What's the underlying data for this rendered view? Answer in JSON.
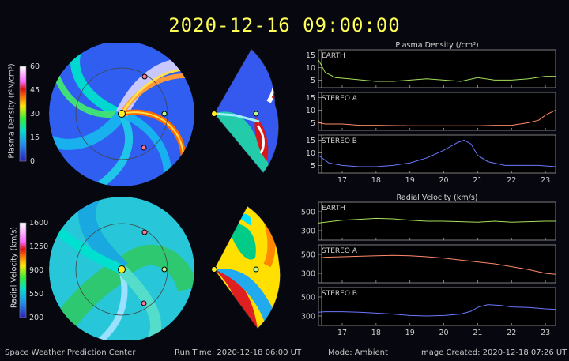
{
  "timestamp": "2020-12-16  09:00:00",
  "footer": {
    "center": "Space Weather Prediction Center",
    "run_time": "Run Time: 2020-12-18 06:00 UT",
    "mode": "Mode: Ambient",
    "created": "Image Created: 2020-12-18 07:26 UT"
  },
  "colorbars": [
    {
      "label": "Plasma Density (r²N/cm³)",
      "ticks": [
        "60",
        "45",
        "30",
        "15",
        "0"
      ]
    },
    {
      "label": "Radial Velocity (km/s)",
      "ticks": [
        "1600",
        "1250",
        "900",
        "550",
        "200"
      ]
    }
  ],
  "colors": {
    "earth": "#a4e05a",
    "stereo_a": "#ff8a6a",
    "stereo_b": "#6b78ff",
    "now_line": "#ffff00",
    "accent": "#ffff55"
  },
  "chart_data": [
    {
      "type": "line",
      "title": "Plasma Density (/cm³)",
      "xlim": [
        16.3,
        23.3
      ],
      "xticks": [
        17,
        18,
        19,
        20,
        21,
        22,
        23
      ],
      "now_marker": 16.4,
      "panels": [
        {
          "name": "EARTH",
          "ylim": [
            2,
            17
          ],
          "yticks": [
            5,
            10,
            15
          ],
          "x": [
            16.3,
            16.5,
            16.8,
            17.2,
            17.6,
            18.0,
            18.5,
            19.0,
            19.5,
            20.0,
            20.5,
            21.0,
            21.5,
            22.0,
            22.5,
            23.0,
            23.3
          ],
          "y": [
            13,
            8,
            6,
            5.5,
            5,
            4.5,
            4.5,
            5,
            5.5,
            5,
            4.5,
            6,
            5,
            5,
            5.5,
            6.5,
            6.5
          ]
        },
        {
          "name": "STEREO A",
          "ylim": [
            2,
            17
          ],
          "yticks": [
            5,
            10,
            15
          ],
          "x": [
            16.3,
            16.5,
            17.0,
            17.5,
            18.0,
            19.0,
            20.0,
            21.0,
            21.5,
            22.0,
            22.5,
            22.8,
            23.0,
            23.3
          ],
          "y": [
            5,
            4.5,
            4.5,
            4,
            4,
            3.8,
            3.8,
            3.8,
            4,
            4,
            5,
            6,
            8,
            10
          ]
        },
        {
          "name": "STEREO B",
          "ylim": [
            2,
            17
          ],
          "yticks": [
            5,
            10,
            15
          ],
          "x": [
            16.3,
            16.6,
            17.0,
            17.5,
            18.0,
            18.5,
            19.0,
            19.5,
            20.0,
            20.4,
            20.6,
            20.8,
            21.0,
            21.3,
            21.8,
            22.3,
            22.8,
            23.3
          ],
          "y": [
            9,
            6,
            5,
            4.5,
            4.5,
            5,
            6,
            8,
            11,
            14,
            15,
            13.5,
            9,
            6.5,
            5,
            5,
            5,
            4.5
          ]
        }
      ]
    },
    {
      "type": "line",
      "title": "Radial Velocity (km/s)",
      "xlim": [
        16.3,
        23.3
      ],
      "xticks": [
        17,
        18,
        19,
        20,
        21,
        22,
        23
      ],
      "xlabels": [
        "17",
        "18",
        "19",
        "20",
        "21",
        "22",
        "23"
      ],
      "now_marker": 16.4,
      "panels": [
        {
          "name": "EARTH",
          "ylim": [
            200,
            600
          ],
          "yticks": [
            300,
            500
          ],
          "x": [
            16.3,
            16.5,
            17.0,
            17.5,
            18.0,
            18.5,
            19.0,
            19.5,
            20.0,
            20.5,
            21.0,
            21.5,
            22.0,
            22.5,
            23.0,
            23.3
          ],
          "y": [
            380,
            390,
            410,
            420,
            430,
            425,
            410,
            400,
            400,
            395,
            390,
            400,
            390,
            395,
            400,
            400
          ]
        },
        {
          "name": "STEREO A",
          "ylim": [
            200,
            600
          ],
          "yticks": [
            300,
            500
          ],
          "x": [
            16.3,
            16.5,
            17.0,
            17.5,
            18.0,
            18.5,
            19.0,
            19.5,
            20.0,
            20.5,
            21.0,
            21.5,
            22.0,
            22.5,
            23.0,
            23.3
          ],
          "y": [
            460,
            470,
            475,
            480,
            485,
            490,
            485,
            475,
            460,
            440,
            420,
            400,
            370,
            340,
            300,
            290
          ]
        },
        {
          "name": "STEREO B",
          "ylim": [
            200,
            600
          ],
          "yticks": [
            300,
            500
          ],
          "x": [
            16.3,
            16.5,
            17.0,
            17.5,
            18.0,
            18.5,
            19.0,
            19.5,
            20.0,
            20.5,
            20.8,
            21.0,
            21.3,
            21.7,
            22.0,
            22.5,
            23.0,
            23.3
          ],
          "y": [
            340,
            345,
            345,
            340,
            330,
            320,
            305,
            300,
            305,
            320,
            350,
            390,
            420,
            410,
            395,
            390,
            375,
            370
          ]
        }
      ]
    }
  ]
}
